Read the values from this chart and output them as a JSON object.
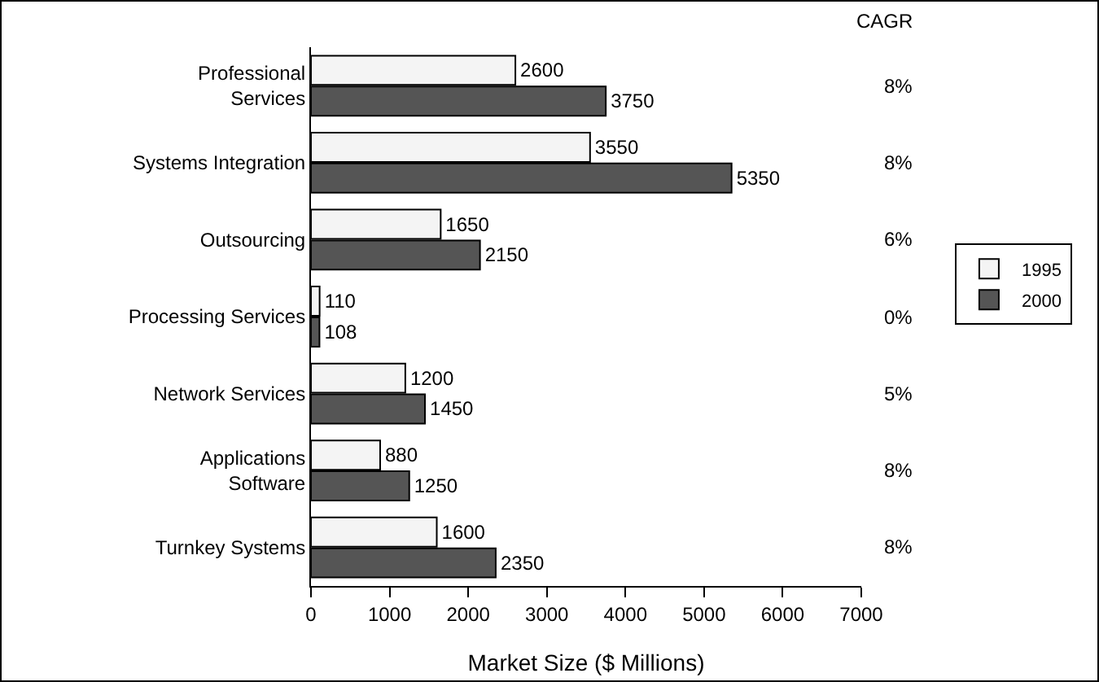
{
  "chart_data": {
    "type": "bar",
    "orientation": "horizontal",
    "xlabel": "Market Size ($ Millions)",
    "categories": [
      "Professional Services",
      "Systems Integration",
      "Outsourcing",
      "Processing Services",
      "Network Services",
      "Applications Software",
      "Turnkey Systems"
    ],
    "series": [
      {
        "name": "1995",
        "color": "#f4f4f4",
        "values": [
          2600,
          3550,
          1650,
          110,
          1200,
          880,
          1600
        ]
      },
      {
        "name": "2000",
        "color": "#555555",
        "values": [
          3750,
          5350,
          2150,
          108,
          1450,
          1250,
          2350
        ]
      }
    ],
    "data_labels": true,
    "xlim": [
      0,
      7000
    ],
    "xticks": [
      0,
      1000,
      2000,
      3000,
      4000,
      5000,
      6000,
      7000
    ],
    "grid": false,
    "legend": "right",
    "annotations": [
      "CAGR",
      "8%",
      "8%",
      "6%",
      "0%",
      "5%",
      "8%",
      "8%"
    ]
  }
}
